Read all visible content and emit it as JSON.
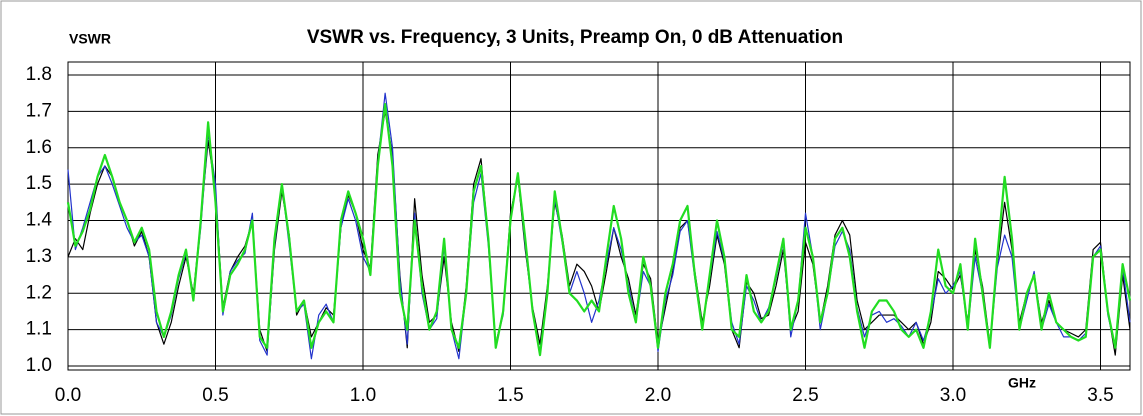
{
  "chart_data": {
    "type": "line",
    "title": "VSWR vs. Frequency, 3 Units, Preamp On, 0 dB Attenuation",
    "y_label": "VSWR",
    "x_label": "GHz",
    "xlim": [
      0,
      3.6
    ],
    "ylim": [
      1.0,
      1.8
    ],
    "xticks": [
      {
        "value": 0,
        "label": "0.0"
      },
      0.5,
      {
        "value": 1,
        "label": "1.0"
      },
      1.5,
      {
        "value": 2,
        "label": "2.0"
      },
      2.5,
      {
        "value": 3,
        "label": "3.0"
      },
      3.5
    ],
    "yticks": [
      {
        "value": 1,
        "label": "1.0"
      },
      1.1,
      1.2,
      1.3,
      1.4,
      1.5,
      1.6,
      1.7,
      1.8
    ],
    "grid": true,
    "x": [
      0,
      0.025,
      0.05,
      0.075,
      0.1,
      0.125,
      0.15,
      0.175,
      0.2,
      0.225,
      0.25,
      0.275,
      0.3,
      0.325,
      0.35,
      0.375,
      0.4,
      0.425,
      0.45,
      0.475,
      0.5,
      0.525,
      0.55,
      0.575,
      0.6,
      0.625,
      0.65,
      0.675,
      0.7,
      0.725,
      0.75,
      0.775,
      0.8,
      0.825,
      0.85,
      0.875,
      0.9,
      0.925,
      0.95,
      0.975,
      1,
      1.025,
      1.05,
      1.075,
      1.1,
      1.125,
      1.15,
      1.175,
      1.2,
      1.225,
      1.25,
      1.275,
      1.3,
      1.325,
      1.35,
      1.375,
      1.4,
      1.425,
      1.45,
      1.475,
      1.5,
      1.525,
      1.55,
      1.575,
      1.6,
      1.625,
      1.65,
      1.675,
      1.7,
      1.725,
      1.75,
      1.775,
      1.8,
      1.825,
      1.85,
      1.875,
      1.9,
      1.925,
      1.95,
      1.975,
      2,
      2.025,
      2.05,
      2.075,
      2.1,
      2.125,
      2.15,
      2.175,
      2.2,
      2.225,
      2.25,
      2.275,
      2.3,
      2.325,
      2.35,
      2.375,
      2.4,
      2.425,
      2.45,
      2.475,
      2.5,
      2.525,
      2.55,
      2.575,
      2.6,
      2.625,
      2.65,
      2.675,
      2.7,
      2.725,
      2.75,
      2.775,
      2.8,
      2.825,
      2.85,
      2.875,
      2.9,
      2.925,
      2.95,
      2.975,
      3,
      3.025,
      3.05,
      3.075,
      3.1,
      3.125,
      3.15,
      3.175,
      3.2,
      3.225,
      3.25,
      3.275,
      3.3,
      3.325,
      3.35,
      3.375,
      3.4,
      3.425,
      3.45,
      3.475,
      3.5,
      3.525,
      3.55,
      3.575,
      3.6
    ],
    "series": [
      {
        "color": "#000000",
        "values": [
          1.3,
          1.35,
          1.32,
          1.42,
          1.5,
          1.55,
          1.52,
          1.45,
          1.4,
          1.33,
          1.37,
          1.3,
          1.12,
          1.06,
          1.12,
          1.22,
          1.3,
          1.2,
          1.4,
          1.62,
          1.48,
          1.16,
          1.26,
          1.3,
          1.33,
          1.4,
          1.1,
          1.04,
          1.32,
          1.48,
          1.36,
          1.14,
          1.18,
          1.08,
          1.12,
          1.16,
          1.14,
          1.38,
          1.47,
          1.42,
          1.32,
          1.27,
          1.58,
          1.7,
          1.58,
          1.25,
          1.05,
          1.46,
          1.25,
          1.12,
          1.14,
          1.3,
          1.12,
          1.04,
          1.22,
          1.5,
          1.57,
          1.35,
          1.06,
          1.15,
          1.42,
          1.52,
          1.32,
          1.16,
          1.06,
          1.22,
          1.45,
          1.36,
          1.22,
          1.28,
          1.26,
          1.22,
          1.15,
          1.26,
          1.38,
          1.3,
          1.24,
          1.14,
          1.28,
          1.24,
          1.06,
          1.16,
          1.26,
          1.38,
          1.4,
          1.26,
          1.12,
          1.22,
          1.36,
          1.28,
          1.1,
          1.05,
          1.23,
          1.2,
          1.13,
          1.14,
          1.22,
          1.32,
          1.1,
          1.15,
          1.34,
          1.28,
          1.12,
          1.22,
          1.36,
          1.4,
          1.36,
          1.18,
          1.1,
          1.12,
          1.14,
          1.14,
          1.14,
          1.12,
          1.1,
          1.12,
          1.06,
          1.12,
          1.26,
          1.24,
          1.21,
          1.25,
          1.12,
          1.32,
          1.22,
          1.06,
          1.28,
          1.45,
          1.32,
          1.12,
          1.2,
          1.25,
          1.12,
          1.18,
          1.12,
          1.1,
          1.09,
          1.08,
          1.1,
          1.32,
          1.34,
          1.15,
          1.03,
          1.25,
          1.1
        ]
      },
      {
        "color": "#2233cc",
        "values": [
          1.54,
          1.32,
          1.38,
          1.45,
          1.52,
          1.55,
          1.5,
          1.44,
          1.38,
          1.34,
          1.36,
          1.3,
          1.12,
          1.08,
          1.14,
          1.24,
          1.31,
          1.19,
          1.38,
          1.64,
          1.5,
          1.14,
          1.26,
          1.29,
          1.31,
          1.42,
          1.07,
          1.03,
          1.33,
          1.5,
          1.33,
          1.15,
          1.17,
          1.02,
          1.14,
          1.17,
          1.12,
          1.38,
          1.46,
          1.4,
          1.3,
          1.26,
          1.56,
          1.75,
          1.6,
          1.24,
          1.06,
          1.42,
          1.2,
          1.1,
          1.13,
          1.33,
          1.1,
          1.02,
          1.2,
          1.45,
          1.53,
          1.33,
          1.06,
          1.14,
          1.4,
          1.53,
          1.33,
          1.15,
          1.04,
          1.2,
          1.46,
          1.34,
          1.2,
          1.26,
          1.2,
          1.12,
          1.18,
          1.28,
          1.38,
          1.32,
          1.22,
          1.12,
          1.26,
          1.22,
          1.04,
          1.18,
          1.25,
          1.37,
          1.4,
          1.24,
          1.1,
          1.24,
          1.37,
          1.29,
          1.12,
          1.06,
          1.22,
          1.18,
          1.12,
          1.16,
          1.24,
          1.34,
          1.08,
          1.18,
          1.42,
          1.3,
          1.1,
          1.2,
          1.33,
          1.37,
          1.32,
          1.16,
          1.08,
          1.14,
          1.15,
          1.12,
          1.13,
          1.11,
          1.08,
          1.12,
          1.07,
          1.14,
          1.24,
          1.2,
          1.22,
          1.26,
          1.1,
          1.3,
          1.2,
          1.05,
          1.27,
          1.36,
          1.3,
          1.1,
          1.18,
          1.26,
          1.1,
          1.17,
          1.12,
          1.08,
          1.08,
          1.07,
          1.09,
          1.3,
          1.33,
          1.14,
          1.05,
          1.27,
          1.12
        ]
      },
      {
        "color": "#22dd22",
        "values": [
          1.45,
          1.33,
          1.37,
          1.43,
          1.52,
          1.58,
          1.52,
          1.45,
          1.4,
          1.34,
          1.38,
          1.32,
          1.15,
          1.08,
          1.15,
          1.25,
          1.32,
          1.18,
          1.4,
          1.67,
          1.45,
          1.15,
          1.25,
          1.28,
          1.32,
          1.4,
          1.08,
          1.05,
          1.35,
          1.5,
          1.35,
          1.15,
          1.18,
          1.05,
          1.12,
          1.15,
          1.12,
          1.4,
          1.48,
          1.42,
          1.35,
          1.25,
          1.55,
          1.72,
          1.55,
          1.2,
          1.1,
          1.4,
          1.22,
          1.1,
          1.15,
          1.35,
          1.1,
          1.05,
          1.2,
          1.48,
          1.55,
          1.35,
          1.05,
          1.15,
          1.4,
          1.53,
          1.35,
          1.15,
          1.03,
          1.2,
          1.48,
          1.35,
          1.2,
          1.18,
          1.15,
          1.18,
          1.15,
          1.3,
          1.44,
          1.35,
          1.2,
          1.12,
          1.3,
          1.22,
          1.05,
          1.2,
          1.28,
          1.4,
          1.44,
          1.25,
          1.1,
          1.25,
          1.4,
          1.3,
          1.1,
          1.08,
          1.25,
          1.15,
          1.12,
          1.15,
          1.25,
          1.35,
          1.1,
          1.18,
          1.38,
          1.3,
          1.12,
          1.2,
          1.35,
          1.38,
          1.3,
          1.15,
          1.05,
          1.15,
          1.18,
          1.18,
          1.15,
          1.1,
          1.08,
          1.1,
          1.05,
          1.15,
          1.32,
          1.22,
          1.2,
          1.28,
          1.1,
          1.35,
          1.2,
          1.05,
          1.3,
          1.52,
          1.35,
          1.1,
          1.2,
          1.25,
          1.1,
          1.2,
          1.12,
          1.1,
          1.08,
          1.07,
          1.08,
          1.3,
          1.32,
          1.15,
          1.05,
          1.28,
          1.18
        ]
      }
    ]
  }
}
